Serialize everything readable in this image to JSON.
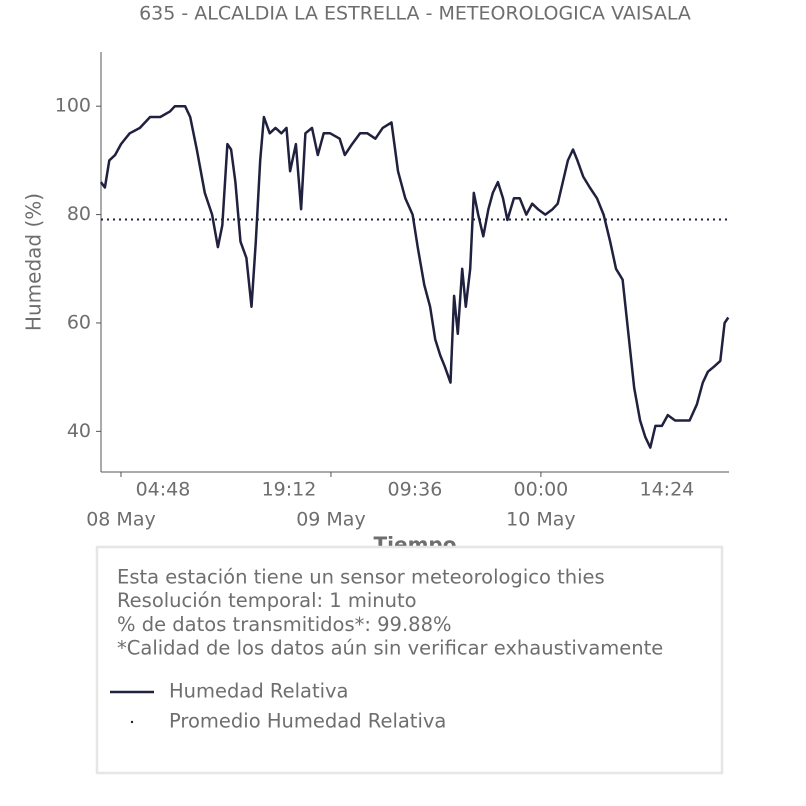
{
  "chart_data": {
    "type": "line",
    "title": "635 - ALCALDIA LA ESTRELLA - METEOROLOGICA VAISALA",
    "xlabel": "Tiempo",
    "ylabel": "Humedad (%)",
    "xlim": [
      "07 May 21:43",
      "10 May 21:30"
    ],
    "ylim": [
      32.5,
      110
    ],
    "yticks": [
      40,
      60,
      80,
      100
    ],
    "xticks": [
      {
        "value": "08 May 00:00",
        "label": "08 May"
      },
      {
        "value": "09 May 00:00",
        "label": "09 May"
      },
      {
        "value": "10 May 00:00",
        "label": "10 May"
      }
    ],
    "xticks_minor": [
      {
        "value": "08 May 04:48",
        "label": "04:48"
      },
      {
        "value": "08 May 19:12",
        "label": "19:12"
      },
      {
        "value": "09 May 09:36",
        "label": "09:36"
      },
      {
        "value": "10 May 00:00",
        "label": "00:00"
      },
      {
        "value": "10 May 14:24",
        "label": "14:24"
      }
    ],
    "x": [
      "07 May 21:42",
      "07 May 22:10",
      "07 May 22:40",
      "07 May 23:20",
      "08 May 00:00",
      "08 May 01:00",
      "08 May 02:10",
      "08 May 03:20",
      "08 May 04:30",
      "08 May 05:35",
      "08 May 06:10",
      "08 May 07:20",
      "08 May 07:55",
      "08 May 08:40",
      "08 May 09:35",
      "08 May 10:25",
      "08 May 11:05",
      "08 May 11:35",
      "08 May 12:10",
      "08 May 12:35",
      "08 May 13:05",
      "08 May 13:40",
      "08 May 14:20",
      "08 May 14:55",
      "08 May 15:25",
      "08 May 15:55",
      "08 May 16:20",
      "08 May 17:00",
      "08 May 17:40",
      "08 May 18:20",
      "08 May 18:55",
      "08 May 19:20",
      "08 May 20:00",
      "08 May 20:35",
      "08 May 21:05",
      "08 May 21:50",
      "08 May 22:30",
      "08 May 23:10",
      "08 May 23:55",
      "09 May 01:00",
      "09 May 01:35",
      "09 May 02:25",
      "09 May 03:20",
      "09 May 04:10",
      "09 May 05:05",
      "09 May 05:55",
      "09 May 06:55",
      "09 May 07:40",
      "09 May 08:30",
      "09 May 09:20",
      "09 May 09:55",
      "09 May 10:40",
      "09 May 11:20",
      "09 May 11:55",
      "09 May 12:30",
      "09 May 13:00",
      "09 May 13:40",
      "09 May 14:05",
      "09 May 14:30",
      "09 May 15:00",
      "09 May 15:25",
      "09 May 15:55",
      "09 May 16:20",
      "09 May 16:50",
      "09 May 17:25",
      "09 May 18:00",
      "09 May 18:30",
      "09 May 19:05",
      "09 May 19:40",
      "09 May 20:10",
      "09 May 20:55",
      "09 May 21:35",
      "09 May 22:20",
      "09 May 23:00",
      "09 May 23:40",
      "10 May 00:30",
      "10 May 01:20",
      "10 May 01:55",
      "10 May 02:30",
      "10 May 03:05",
      "10 May 03:40",
      "10 May 04:10",
      "10 May 04:50",
      "10 May 05:35",
      "10 May 06:25",
      "10 May 07:10",
      "10 May 07:55",
      "10 May 08:35",
      "10 May 09:20",
      "10 May 10:00",
      "10 May 10:40",
      "10 May 11:20",
      "10 May 11:55",
      "10 May 12:30",
      "10 May 13:05",
      "10 May 13:50",
      "10 May 14:30",
      "10 May 15:20",
      "10 May 16:05",
      "10 May 17:00",
      "10 May 17:50",
      "10 May 18:30",
      "10 May 19:05",
      "10 May 19:50",
      "10 May 20:30",
      "10 May 21:00",
      "10 May 21:25"
    ],
    "series": [
      {
        "name": "Humedad Relativa",
        "color": "#20203f",
        "values": [
          86,
          85,
          90,
          91,
          93,
          95,
          96,
          98,
          98,
          99,
          100,
          100,
          98,
          92,
          84,
          80,
          74,
          78,
          93,
          92,
          86,
          75,
          72,
          63,
          75,
          90,
          98,
          95,
          96,
          95,
          96,
          88,
          93,
          81,
          95,
          96,
          91,
          95,
          95,
          94,
          91,
          93,
          95,
          95,
          94,
          96,
          97,
          88,
          83,
          80,
          74,
          67,
          63,
          57,
          54,
          52,
          49,
          65,
          58,
          70,
          63,
          70,
          84,
          80,
          76,
          81,
          84,
          86,
          83,
          79,
          83,
          83,
          80,
          82,
          81,
          80,
          81,
          82,
          86,
          90,
          92,
          90,
          87,
          85,
          83,
          80,
          75,
          70,
          68,
          58,
          48,
          42,
          39,
          37,
          41,
          41,
          43,
          42,
          42,
          42,
          45,
          49,
          51,
          52,
          53,
          60,
          61
        ]
      }
    ],
    "mean_line": {
      "name": "Promedio Humedad Relativa",
      "value": 79.1,
      "color": "#20203f"
    },
    "notes": [
      "Esta estación tiene un sensor meteorologico thies",
      "Resolución temporal: 1 minuto",
      "% de datos transmitidos*: 99.88%",
      "*Calidad de los datos aún sin verificar exhaustivamente"
    ]
  }
}
